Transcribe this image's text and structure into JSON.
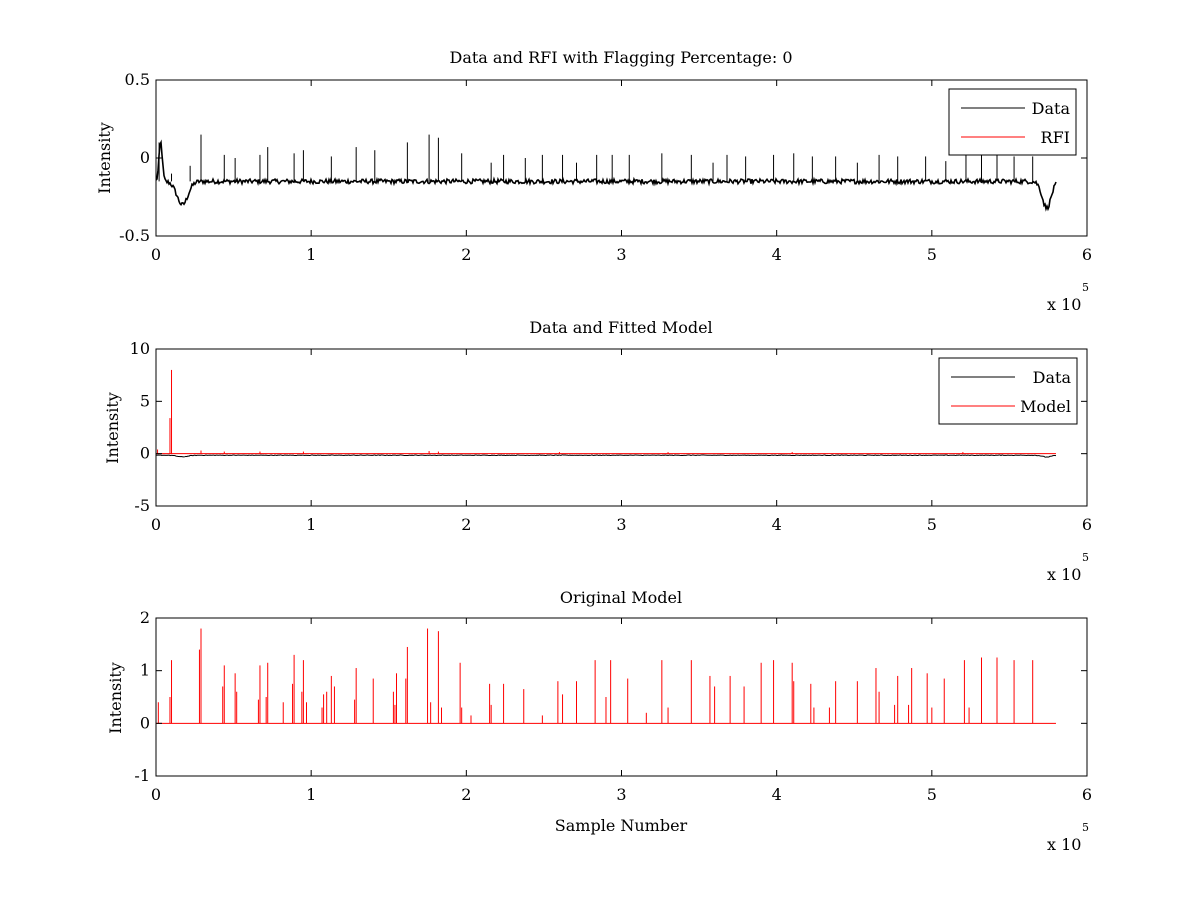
{
  "figure": {
    "axes": [
      {
        "title": "Data and RFI with Flagging Percentage: 0",
        "xlabel": "",
        "ylabel": "Intensity",
        "xlim": [
          0,
          600000
        ],
        "ylim": [
          -0.5,
          0.5
        ],
        "xticks": [
          0,
          100000,
          200000,
          300000,
          400000,
          500000,
          600000
        ],
        "xtick_labels": [
          "0",
          "1",
          "2",
          "3",
          "4",
          "5",
          "6"
        ],
        "yticks": [
          -0.5,
          0,
          0.5
        ],
        "ytick_labels": [
          "-0.5",
          "0",
          "0.5"
        ],
        "x_multiplier": {
          "base": "x 10",
          "exponent": "5"
        },
        "legend": {
          "placement": "top-right",
          "entries": [
            {
              "label": "Data",
              "color": "#000000"
            },
            {
              "label": "RFI",
              "color": "#ff0000"
            }
          ]
        }
      },
      {
        "title": "Data and Fitted Model",
        "xlabel": "",
        "ylabel": "Intensity",
        "xlim": [
          0,
          600000
        ],
        "ylim": [
          -5,
          10
        ],
        "xticks": [
          0,
          100000,
          200000,
          300000,
          400000,
          500000,
          600000
        ],
        "xtick_labels": [
          "0",
          "1",
          "2",
          "3",
          "4",
          "5",
          "6"
        ],
        "yticks": [
          -5,
          0,
          5,
          10
        ],
        "ytick_labels": [
          "-5",
          "0",
          "5",
          "10"
        ],
        "x_multiplier": {
          "base": "x 10",
          "exponent": "5"
        },
        "legend": {
          "placement": "top-right",
          "entries": [
            {
              "label": "Data",
              "color": "#000000"
            },
            {
              "label": "Model",
              "color": "#ff0000"
            }
          ]
        }
      },
      {
        "title": "Original Model",
        "xlabel": "Sample Number",
        "ylabel": "Intensity",
        "xlim": [
          0,
          600000
        ],
        "ylim": [
          -1,
          2
        ],
        "xticks": [
          0,
          100000,
          200000,
          300000,
          400000,
          500000,
          600000
        ],
        "xtick_labels": [
          "0",
          "1",
          "2",
          "3",
          "4",
          "5",
          "6"
        ],
        "yticks": [
          -1,
          0,
          1,
          2
        ],
        "ytick_labels": [
          "-1",
          "0",
          "1",
          "2"
        ],
        "x_multiplier": {
          "base": "x 10",
          "exponent": "5"
        },
        "legend": null
      }
    ]
  },
  "chart_data": [
    {
      "type": "line",
      "title": "Data and RFI with Flagging Percentage: 0",
      "ylabel": "Intensity",
      "xlim": [
        0,
        600000
      ],
      "ylim": [
        -0.5,
        0.5
      ],
      "grid": false,
      "legend_placement": "top-right",
      "series": [
        {
          "name": "Data",
          "color": "#000000",
          "baseline": -0.15,
          "noise": 0.015,
          "x_end": 580000,
          "dips": [
            {
              "x": 17000,
              "depth": -0.3,
              "width": 5000
            },
            {
              "x": 574000,
              "depth": -0.32,
              "width": 4000
            }
          ],
          "start_bump": {
            "x": 3000,
            "value": 0.1
          },
          "spikes": [
            {
              "x": 2000,
              "y": 0.1
            },
            {
              "x": 10000,
              "y": -0.1
            },
            {
              "x": 22000,
              "y": -0.05
            },
            {
              "x": 29000,
              "y": 0.15
            },
            {
              "x": 44000,
              "y": 0.02
            },
            {
              "x": 51000,
              "y": 0.0
            },
            {
              "x": 67000,
              "y": 0.02
            },
            {
              "x": 72000,
              "y": 0.07
            },
            {
              "x": 89000,
              "y": 0.03
            },
            {
              "x": 95000,
              "y": 0.05
            },
            {
              "x": 113000,
              "y": 0.01
            },
            {
              "x": 129000,
              "y": 0.07
            },
            {
              "x": 141000,
              "y": 0.05
            },
            {
              "x": 162000,
              "y": 0.1
            },
            {
              "x": 176000,
              "y": 0.15
            },
            {
              "x": 182000,
              "y": 0.13
            },
            {
              "x": 197000,
              "y": 0.03
            },
            {
              "x": 216000,
              "y": -0.03
            },
            {
              "x": 224000,
              "y": 0.02
            },
            {
              "x": 238000,
              "y": 0.0
            },
            {
              "x": 249000,
              "y": 0.02
            },
            {
              "x": 262000,
              "y": 0.02
            },
            {
              "x": 271000,
              "y": -0.03
            },
            {
              "x": 284000,
              "y": 0.02
            },
            {
              "x": 294000,
              "y": 0.02
            },
            {
              "x": 305000,
              "y": 0.02
            },
            {
              "x": 326000,
              "y": 0.03
            },
            {
              "x": 345000,
              "y": 0.02
            },
            {
              "x": 359000,
              "y": -0.03
            },
            {
              "x": 368000,
              "y": 0.02
            },
            {
              "x": 380000,
              "y": 0.01
            },
            {
              "x": 398000,
              "y": 0.02
            },
            {
              "x": 411000,
              "y": 0.03
            },
            {
              "x": 423000,
              "y": 0.01
            },
            {
              "x": 438000,
              "y": 0.01
            },
            {
              "x": 452000,
              "y": -0.03
            },
            {
              "x": 466000,
              "y": 0.02
            },
            {
              "x": 478000,
              "y": 0.01
            },
            {
              "x": 496000,
              "y": 0.01
            },
            {
              "x": 509000,
              "y": -0.02
            },
            {
              "x": 522000,
              "y": 0.02
            },
            {
              "x": 532000,
              "y": 0.02
            },
            {
              "x": 542000,
              "y": 0.02
            },
            {
              "x": 553000,
              "y": 0.01
            },
            {
              "x": 565000,
              "y": 0.01
            }
          ]
        },
        {
          "name": "RFI",
          "color": "#ff0000",
          "values": []
        }
      ]
    },
    {
      "type": "line",
      "title": "Data and Fitted Model",
      "ylabel": "Intensity",
      "xlim": [
        0,
        600000
      ],
      "ylim": [
        -5,
        10
      ],
      "grid": false,
      "legend_placement": "top-right",
      "series": [
        {
          "name": "Data",
          "color": "#000000",
          "baseline": -0.15,
          "x_end": 580000,
          "dips": [
            {
              "x": 17000,
              "depth": -0.3,
              "width": 5000
            },
            {
              "x": 574000,
              "depth": -0.32,
              "width": 4000
            }
          ]
        },
        {
          "name": "Model",
          "color": "#ff0000",
          "baseline": 0,
          "x_end": 580000,
          "spikes": [
            {
              "x": 1000,
              "y": 0.4
            },
            {
              "x": 9000,
              "y": 3.4
            },
            {
              "x": 10000,
              "y": 8.0
            },
            {
              "x": 29000,
              "y": 0.3
            },
            {
              "x": 44000,
              "y": 0.2
            },
            {
              "x": 67000,
              "y": 0.2
            },
            {
              "x": 95000,
              "y": 0.2
            },
            {
              "x": 176000,
              "y": 0.25
            },
            {
              "x": 182000,
              "y": 0.2
            },
            {
              "x": 260000,
              "y": 0.15
            },
            {
              "x": 330000,
              "y": 0.15
            },
            {
              "x": 410000,
              "y": 0.15
            },
            {
              "x": 520000,
              "y": 0.15
            }
          ]
        }
      ]
    },
    {
      "type": "line",
      "title": "Original Model",
      "xlabel": "Sample Number",
      "ylabel": "Intensity",
      "xlim": [
        0,
        600000
      ],
      "ylim": [
        -1,
        2
      ],
      "grid": false,
      "series": [
        {
          "name": "Model",
          "color": "#ff0000",
          "baseline": 0,
          "x_end": 580000,
          "spikes": [
            {
              "x": 1500,
              "y": 0.4
            },
            {
              "x": 9000,
              "y": 0.5
            },
            {
              "x": 10000,
              "y": 1.2
            },
            {
              "x": 28000,
              "y": 1.4
            },
            {
              "x": 29000,
              "y": 1.8
            },
            {
              "x": 43000,
              "y": 0.7
            },
            {
              "x": 44000,
              "y": 1.1
            },
            {
              "x": 51000,
              "y": 0.95
            },
            {
              "x": 52000,
              "y": 0.6
            },
            {
              "x": 66000,
              "y": 0.45
            },
            {
              "x": 67000,
              "y": 1.1
            },
            {
              "x": 71000,
              "y": 0.5
            },
            {
              "x": 72000,
              "y": 1.15
            },
            {
              "x": 82000,
              "y": 0.4
            },
            {
              "x": 88000,
              "y": 0.75
            },
            {
              "x": 89000,
              "y": 1.3
            },
            {
              "x": 94000,
              "y": 0.6
            },
            {
              "x": 95000,
              "y": 1.2
            },
            {
              "x": 97000,
              "y": 0.4
            },
            {
              "x": 107000,
              "y": 0.3
            },
            {
              "x": 113000,
              "y": 0.9
            },
            {
              "x": 108000,
              "y": 0.55
            },
            {
              "x": 110000,
              "y": 0.6
            },
            {
              "x": 115000,
              "y": 0.7
            },
            {
              "x": 128000,
              "y": 0.45
            },
            {
              "x": 129000,
              "y": 1.05
            },
            {
              "x": 140000,
              "y": 0.85
            },
            {
              "x": 153000,
              "y": 0.6
            },
            {
              "x": 154000,
              "y": 0.35
            },
            {
              "x": 155000,
              "y": 0.95
            },
            {
              "x": 161000,
              "y": 0.85
            },
            {
              "x": 162000,
              "y": 1.45
            },
            {
              "x": 175000,
              "y": 1.8
            },
            {
              "x": 177000,
              "y": 0.4
            },
            {
              "x": 182000,
              "y": 1.75
            },
            {
              "x": 184000,
              "y": 0.3
            },
            {
              "x": 196000,
              "y": 1.15
            },
            {
              "x": 197000,
              "y": 0.3
            },
            {
              "x": 203000,
              "y": 0.15
            },
            {
              "x": 215000,
              "y": 0.75
            },
            {
              "x": 216000,
              "y": 0.35
            },
            {
              "x": 224000,
              "y": 0.75
            },
            {
              "x": 237000,
              "y": 0.65
            },
            {
              "x": 249000,
              "y": 0.15
            },
            {
              "x": 259000,
              "y": 0.8
            },
            {
              "x": 262000,
              "y": 0.55
            },
            {
              "x": 271000,
              "y": 0.8
            },
            {
              "x": 283000,
              "y": 1.2
            },
            {
              "x": 290000,
              "y": 0.5
            },
            {
              "x": 293000,
              "y": 1.2
            },
            {
              "x": 304000,
              "y": 0.85
            },
            {
              "x": 316000,
              "y": 0.2
            },
            {
              "x": 326000,
              "y": 1.2
            },
            {
              "x": 330000,
              "y": 0.3
            },
            {
              "x": 345000,
              "y": 1.2
            },
            {
              "x": 357000,
              "y": 0.9
            },
            {
              "x": 360000,
              "y": 0.7
            },
            {
              "x": 370000,
              "y": 0.9
            },
            {
              "x": 379000,
              "y": 0.7
            },
            {
              "x": 390000,
              "y": 1.15
            },
            {
              "x": 398000,
              "y": 1.2
            },
            {
              "x": 410000,
              "y": 1.15
            },
            {
              "x": 411000,
              "y": 0.8
            },
            {
              "x": 422000,
              "y": 0.75
            },
            {
              "x": 424000,
              "y": 0.3
            },
            {
              "x": 434000,
              "y": 0.3
            },
            {
              "x": 438000,
              "y": 0.8
            },
            {
              "x": 452000,
              "y": 0.8
            },
            {
              "x": 464000,
              "y": 1.05
            },
            {
              "x": 466000,
              "y": 0.6
            },
            {
              "x": 476000,
              "y": 0.35
            },
            {
              "x": 478000,
              "y": 0.9
            },
            {
              "x": 485000,
              "y": 0.35
            },
            {
              "x": 487000,
              "y": 1.05
            },
            {
              "x": 497000,
              "y": 0.95
            },
            {
              "x": 500000,
              "y": 0.3
            },
            {
              "x": 508000,
              "y": 0.85
            },
            {
              "x": 521000,
              "y": 1.2
            },
            {
              "x": 524000,
              "y": 0.3
            },
            {
              "x": 532000,
              "y": 1.25
            },
            {
              "x": 542000,
              "y": 1.25
            },
            {
              "x": 553000,
              "y": 1.2
            },
            {
              "x": 565000,
              "y": 1.2
            }
          ]
        }
      ]
    }
  ]
}
